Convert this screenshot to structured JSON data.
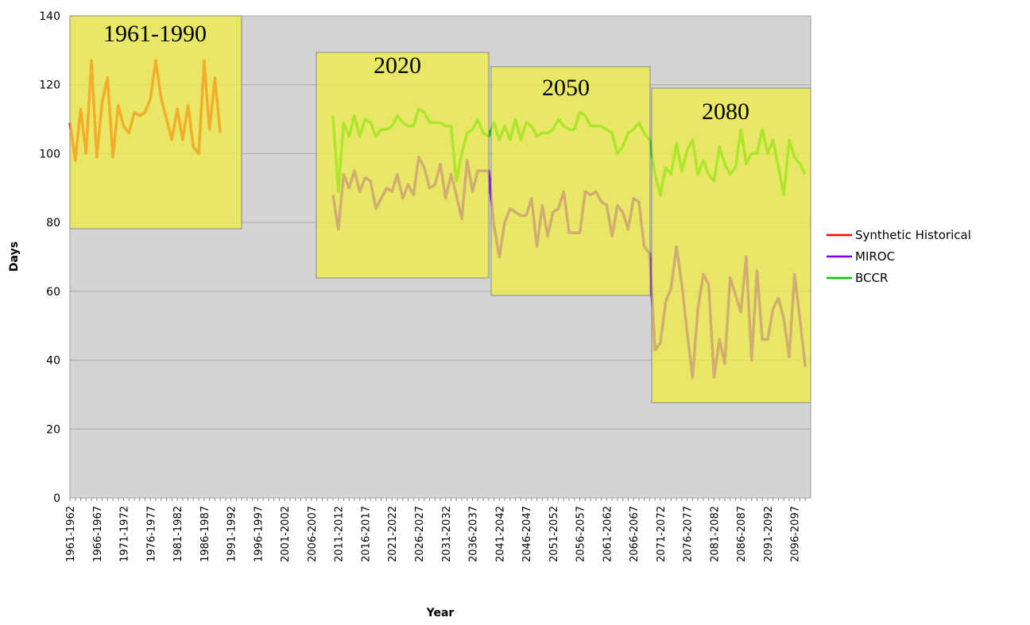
{
  "chart_data": {
    "type": "line",
    "x_label": "Year",
    "y_label": "Days",
    "categories": [
      "1961-1962",
      null,
      null,
      null,
      null,
      "1966-1967",
      null,
      null,
      null,
      null,
      "1971-1972",
      null,
      null,
      null,
      null,
      "1976-1977",
      null,
      null,
      null,
      null,
      "1981-1982",
      null,
      null,
      null,
      null,
      "1986-1987",
      null,
      null,
      null,
      null,
      "1991-1992",
      null,
      null,
      null,
      null,
      "1996-1997",
      null,
      null,
      null,
      null,
      "2001-2002",
      null,
      null,
      null,
      null,
      "2006-2007",
      null,
      null,
      null,
      null,
      "2011-2012",
      null,
      null,
      null,
      null,
      "2016-2017",
      null,
      null,
      null,
      null,
      "2021-2022",
      null,
      null,
      null,
      null,
      "2026-2027",
      null,
      null,
      null,
      null,
      "2031-2032",
      null,
      null,
      null,
      null,
      "2036-2037",
      null,
      null,
      null,
      null,
      "2041-2042",
      null,
      null,
      null,
      null,
      "2046-2047",
      null,
      null,
      null,
      null,
      "2051-2052",
      null,
      null,
      null,
      null,
      "2056-2057",
      null,
      null,
      null,
      null,
      "2061-2062",
      null,
      null,
      null,
      null,
      "2066-2067",
      null,
      null,
      null,
      null,
      "2071-2072",
      null,
      null,
      null,
      null,
      "2076-2077",
      null,
      null,
      null,
      null,
      "2081-2082",
      null,
      null,
      null,
      null,
      "2086-2087",
      null,
      null,
      null,
      null,
      "2091-2092",
      null,
      null,
      null,
      null,
      "2096-2097",
      null,
      null
    ],
    "series": [
      {
        "name": "Synthetic Historical",
        "color": "#ff0000",
        "values": [
          109,
          98,
          113,
          100,
          127,
          99,
          115,
          122,
          99,
          114,
          108,
          106,
          112,
          111,
          112,
          116,
          127,
          116,
          110,
          104,
          113,
          104,
          114,
          102,
          100,
          127,
          107,
          122,
          106,
          null,
          null,
          null,
          null,
          null,
          null,
          null,
          null,
          null,
          null,
          null,
          null,
          null,
          null,
          null,
          null,
          null,
          null,
          null,
          null,
          null,
          null,
          null,
          null,
          null,
          null,
          null,
          null,
          null,
          null,
          null,
          null,
          null,
          null,
          null,
          null,
          null,
          null,
          null,
          null,
          null,
          null,
          null,
          null,
          null,
          null,
          null,
          null,
          null,
          null,
          null,
          null,
          null,
          null,
          null,
          null,
          null,
          null,
          null,
          null,
          null,
          null,
          null,
          null,
          null,
          null,
          null,
          null,
          null,
          null,
          null,
          null,
          null,
          null,
          null,
          null,
          null,
          null,
          null,
          null,
          null,
          null,
          null,
          null,
          null,
          null,
          null,
          null,
          null,
          null,
          null,
          null,
          null,
          null,
          null,
          null,
          null,
          null,
          null,
          null,
          null,
          null,
          null,
          null,
          null,
          null,
          null,
          null,
          null
        ]
      },
      {
        "name": "MIROC",
        "color": "#8000ff",
        "values": [
          null,
          null,
          null,
          null,
          null,
          null,
          null,
          null,
          null,
          null,
          null,
          null,
          null,
          null,
          null,
          null,
          null,
          null,
          null,
          null,
          null,
          null,
          null,
          null,
          null,
          null,
          null,
          null,
          null,
          null,
          null,
          null,
          null,
          null,
          null,
          null,
          null,
          null,
          null,
          null,
          null,
          null,
          null,
          null,
          null,
          null,
          null,
          null,
          null,
          88,
          78,
          94,
          90,
          95,
          89,
          93,
          92,
          84,
          87,
          90,
          89,
          94,
          87,
          91,
          88,
          99,
          96,
          90,
          91,
          97,
          87,
          94,
          88,
          81,
          98,
          89,
          95,
          95,
          95,
          79,
          70,
          80,
          84,
          83,
          82,
          82,
          87,
          73,
          85,
          76,
          83,
          84,
          89,
          77,
          77,
          77,
          89,
          88,
          89,
          86,
          85,
          76,
          85,
          83,
          78,
          87,
          86,
          73,
          71,
          43,
          45,
          57,
          61,
          73,
          62,
          48,
          35,
          55,
          65,
          62,
          35,
          46,
          39,
          64,
          59,
          54,
          70,
          40,
          66,
          46,
          46,
          55,
          58,
          52,
          41,
          65,
          52,
          38
        ]
      },
      {
        "name": "BCCR",
        "color": "#00c800",
        "values": [
          null,
          null,
          null,
          null,
          null,
          null,
          null,
          null,
          null,
          null,
          null,
          null,
          null,
          null,
          null,
          null,
          null,
          null,
          null,
          null,
          null,
          null,
          null,
          null,
          null,
          null,
          null,
          null,
          null,
          null,
          null,
          null,
          null,
          null,
          null,
          null,
          null,
          null,
          null,
          null,
          null,
          null,
          null,
          null,
          null,
          null,
          null,
          null,
          null,
          111,
          89,
          109,
          105,
          111,
          105,
          110,
          109,
          105,
          107,
          107,
          108,
          111,
          109,
          108,
          108,
          113,
          112,
          109,
          109,
          109,
          108,
          108,
          92,
          100,
          106,
          107,
          110,
          106,
          105,
          109,
          104,
          108,
          104,
          110,
          104,
          109,
          108,
          105,
          106,
          106,
          107,
          110,
          108,
          107,
          107,
          112,
          111,
          108,
          108,
          108,
          107,
          106,
          100,
          102,
          106,
          107,
          109,
          106,
          104,
          94,
          88,
          96,
          94,
          103,
          95,
          101,
          104,
          94,
          98,
          94,
          92,
          102,
          97,
          94,
          96,
          107,
          97,
          100,
          100,
          107,
          100,
          104,
          96,
          88,
          104,
          99,
          97,
          94
        ]
      }
    ],
    "annotations": [
      "1961-1990",
      "2020",
      "2050",
      "2080"
    ],
    "ylim": [
      0,
      140
    ],
    "yticks": [
      0,
      20,
      40,
      60,
      80,
      100,
      120,
      140
    ],
    "grid": true,
    "legend": "right"
  }
}
